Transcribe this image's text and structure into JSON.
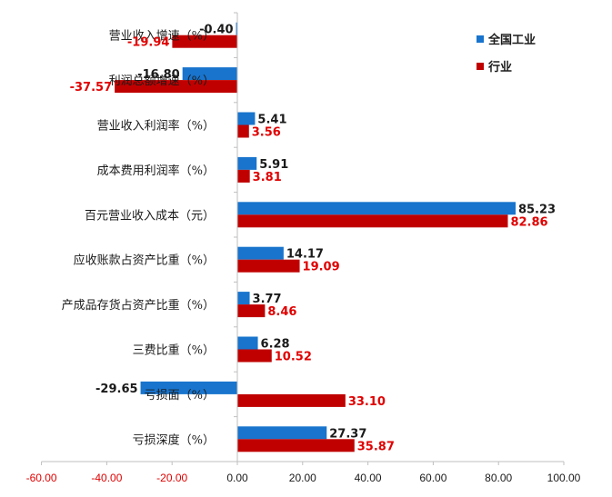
{
  "chart_data": {
    "type": "bar",
    "orientation": "horizontal",
    "categories": [
      "营业收入增速（%）",
      "利润总额增速（%）",
      "营业收入利润率（%）",
      "成本费用利润率（%）",
      "百元营业收入成本（元）",
      "应收账款占资产比重（%）",
      "产成品存货占资产比重（%）",
      "三费比重（%）",
      "亏损面（%）",
      "亏损深度（%）"
    ],
    "series": [
      {
        "name": "全国工业",
        "color": "#1874CD",
        "label_color": "#1a1a1a",
        "values": [
          -0.4,
          -16.8,
          5.41,
          5.91,
          85.23,
          14.17,
          3.77,
          6.28,
          -29.65,
          27.37
        ],
        "labels": [
          "-0.40",
          "-16.80",
          "5.41",
          "5.91",
          "85.23",
          "14.17",
          "3.77",
          "6.28",
          "-29.65",
          "27.37"
        ]
      },
      {
        "name": "行业",
        "color": "#C00000",
        "label_color": "#e00000",
        "values": [
          -19.94,
          -37.57,
          3.56,
          3.81,
          82.86,
          19.09,
          8.46,
          10.52,
          33.1,
          35.87
        ],
        "labels": [
          "-19.94",
          "-37.57",
          "3.56",
          "3.81",
          "82.86",
          "19.09",
          "8.46",
          "10.52",
          "33.10",
          "35.87"
        ]
      }
    ],
    "xlim": [
      -60,
      100
    ],
    "xticks": [
      "-60.00",
      "-40.00",
      "-20.00",
      "0.00",
      "20.00",
      "40.00",
      "60.00",
      "80.00",
      "100.00"
    ],
    "xtick_values": [
      -60,
      -40,
      -20,
      0,
      20,
      40,
      60,
      80,
      100
    ],
    "negative_tick_color": "#e00000",
    "positive_tick_color": "#1a1a1a",
    "grid": false,
    "legend_position": "top-right",
    "title": "",
    "xlabel": "",
    "ylabel": ""
  }
}
